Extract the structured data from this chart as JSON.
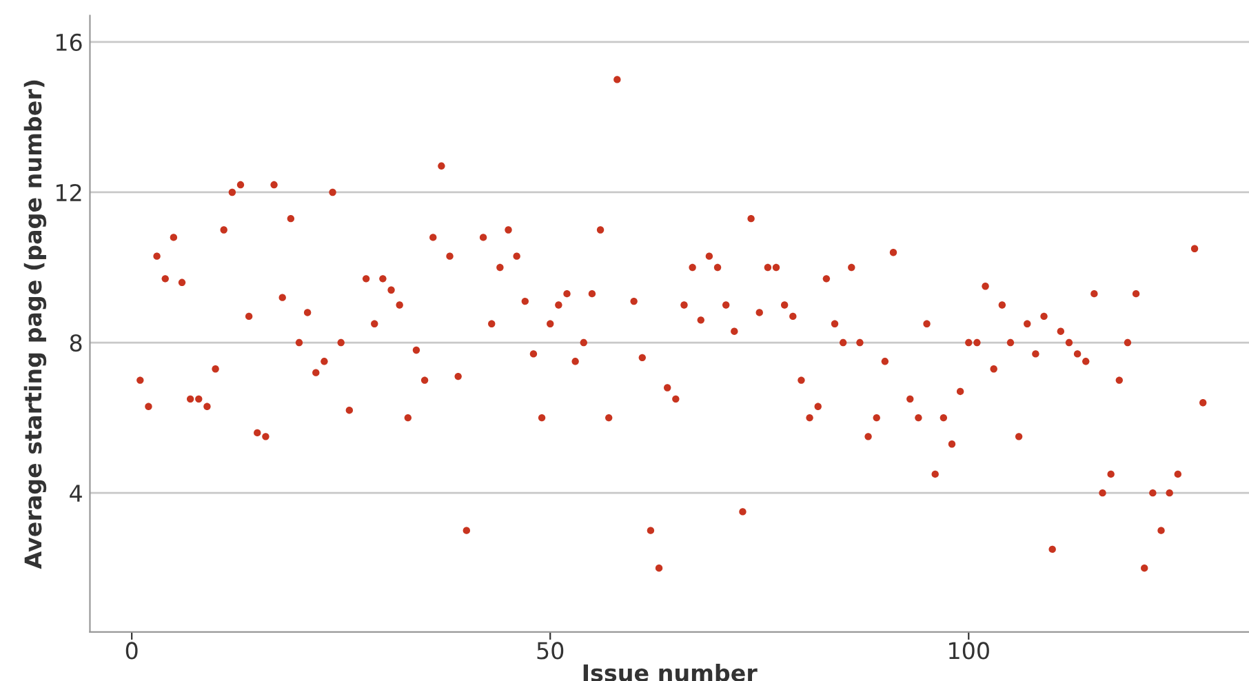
{
  "chart_data": {
    "type": "scatter",
    "xlabel": "Issue number",
    "ylabel": "Average starting page (page number)",
    "xlim": [
      -5,
      133.5
    ],
    "ylim": [
      0.3,
      16.7
    ],
    "xticks": [
      0,
      50,
      100
    ],
    "yticks": [
      4,
      8,
      12,
      16
    ],
    "grid": "y",
    "marker": "circle",
    "series": [
      {
        "color": "#c8341f",
        "x": [
          1,
          2,
          3,
          4,
          5,
          6,
          7,
          8,
          9,
          10,
          11,
          12,
          13,
          14,
          15,
          16,
          17,
          18,
          19,
          20,
          21,
          22,
          23,
          24,
          25,
          26,
          28,
          29,
          30,
          31,
          32,
          33,
          34,
          35,
          36,
          37,
          38,
          39,
          40,
          42,
          43,
          44,
          45,
          46,
          47,
          48,
          49,
          50,
          51,
          52,
          53,
          54,
          55,
          56,
          57,
          58,
          60,
          61,
          62,
          63,
          64,
          65,
          66,
          67,
          68,
          69,
          70,
          71,
          72,
          73,
          74,
          75,
          76,
          77,
          78,
          79,
          80,
          81,
          82,
          83,
          84,
          85,
          86,
          87,
          88,
          89,
          90,
          91,
          93,
          94,
          95,
          96,
          97,
          98,
          99,
          100,
          101,
          102,
          103,
          104,
          105,
          106,
          107,
          108,
          109,
          110,
          111,
          112,
          113,
          114,
          115,
          116,
          117,
          118,
          119,
          120,
          121,
          122,
          123,
          124,
          125,
          127,
          128
        ],
        "values": [
          7.0,
          6.3,
          10.3,
          9.7,
          10.8,
          9.6,
          6.5,
          6.5,
          6.3,
          7.3,
          11.0,
          12.0,
          12.2,
          8.7,
          5.6,
          5.5,
          12.2,
          9.2,
          11.3,
          8.0,
          8.8,
          7.2,
          7.5,
          12.0,
          8.0,
          6.2,
          9.7,
          8.5,
          9.7,
          9.4,
          9.0,
          6.0,
          7.8,
          7.0,
          10.8,
          12.7,
          10.3,
          7.1,
          3.0,
          10.8,
          8.5,
          10.0,
          11.0,
          10.3,
          9.1,
          7.7,
          6.0,
          8.5,
          9.0,
          9.3,
          7.5,
          8.0,
          9.3,
          11.0,
          6.0,
          15.0,
          9.1,
          7.6,
          3.0,
          2.0,
          6.8,
          6.5,
          9.0,
          10.0,
          8.6,
          10.3,
          10.0,
          9.0,
          8.3,
          3.5,
          11.3,
          8.8,
          10.0,
          10.0,
          9.0,
          8.7,
          7.0,
          6.0,
          6.3,
          9.7,
          8.5,
          8.0,
          10.0,
          8.0,
          5.5,
          6.0,
          7.5,
          10.4,
          6.5,
          6.0,
          8.5,
          4.5,
          6.0,
          5.3,
          6.7,
          8.0,
          8.0,
          9.5,
          7.3,
          9.0,
          8.0,
          5.5,
          8.5,
          7.7,
          8.7,
          2.5,
          8.3,
          8.0,
          7.7,
          7.5,
          9.3,
          4.0,
          4.5,
          7.0,
          8.0,
          9.3,
          2.0,
          4.0,
          3.0,
          4.0,
          4.5,
          10.5,
          6.4
        ]
      }
    ]
  }
}
